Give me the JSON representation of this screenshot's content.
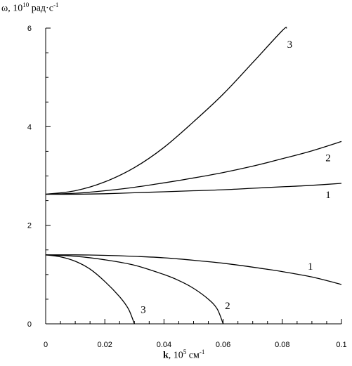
{
  "chart_data": {
    "type": "line",
    "ylabel": {
      "symbol": "ω,",
      "base": "10",
      "exp": "10",
      "unit": "рад·с",
      "unit_exp": "-1"
    },
    "xlabel": {
      "symbol": "k",
      "sep": ",",
      "base": "10",
      "exp": "5",
      "unit": "см",
      "unit_exp": "-1"
    },
    "xlim": [
      0,
      0.1
    ],
    "ylim": [
      0,
      6
    ],
    "x_ticks": [
      0,
      0.02,
      0.04,
      0.06,
      0.08,
      0.1
    ],
    "x_tick_labels": [
      "0",
      "0.02",
      "0.04",
      "0.06",
      "0.08",
      "0.1"
    ],
    "y_ticks": [
      0,
      2,
      4,
      6
    ],
    "y_tick_labels": [
      "0",
      "2",
      "4",
      "6"
    ],
    "grid": false,
    "series": [
      {
        "name": "1",
        "branch": "upper",
        "x": [
          0,
          0.01,
          0.02,
          0.03,
          0.04,
          0.05,
          0.06,
          0.07,
          0.08,
          0.09,
          0.1
        ],
        "y": [
          2.63,
          2.63,
          2.64,
          2.66,
          2.68,
          2.7,
          2.72,
          2.75,
          2.78,
          2.81,
          2.85
        ]
      },
      {
        "name": "2",
        "branch": "upper",
        "x": [
          0,
          0.01,
          0.02,
          0.03,
          0.04,
          0.05,
          0.06,
          0.07,
          0.08,
          0.09,
          0.1
        ],
        "y": [
          2.63,
          2.65,
          2.7,
          2.77,
          2.86,
          2.96,
          3.07,
          3.2,
          3.35,
          3.51,
          3.7
        ]
      },
      {
        "name": "3",
        "branch": "upper",
        "x": [
          0,
          0.01,
          0.02,
          0.03,
          0.04,
          0.05,
          0.06,
          0.07,
          0.08,
          0.0815
        ],
        "y": [
          2.63,
          2.7,
          2.88,
          3.17,
          3.58,
          4.1,
          4.66,
          5.3,
          5.95,
          6.0
        ]
      },
      {
        "name": "1",
        "branch": "lower",
        "x": [
          0,
          0.01,
          0.02,
          0.03,
          0.04,
          0.05,
          0.06,
          0.07,
          0.08,
          0.09,
          0.1
        ],
        "y": [
          1.4,
          1.4,
          1.39,
          1.37,
          1.34,
          1.29,
          1.23,
          1.15,
          1.06,
          0.95,
          0.8
        ]
      },
      {
        "name": "2",
        "branch": "lower",
        "x": [
          0,
          0.01,
          0.02,
          0.03,
          0.04,
          0.045,
          0.05,
          0.055,
          0.058,
          0.06
        ],
        "y": [
          1.4,
          1.37,
          1.3,
          1.19,
          1.0,
          0.88,
          0.72,
          0.5,
          0.3,
          0.0
        ]
      },
      {
        "name": "3",
        "branch": "lower",
        "x": [
          0,
          0.005,
          0.01,
          0.015,
          0.02,
          0.025,
          0.028,
          0.03
        ],
        "y": [
          1.4,
          1.36,
          1.27,
          1.11,
          0.86,
          0.55,
          0.3,
          0.0
        ]
      }
    ],
    "curve_labels": [
      {
        "text": "3",
        "x": 0.0825,
        "y": 5.6
      },
      {
        "text": "2",
        "x": 0.0955,
        "y": 3.3
      },
      {
        "text": "1",
        "x": 0.0955,
        "y": 2.55
      },
      {
        "text": "1",
        "x": 0.0895,
        "y": 1.1
      },
      {
        "text": "2",
        "x": 0.0615,
        "y": 0.3
      },
      {
        "text": "3",
        "x": 0.033,
        "y": 0.22
      }
    ]
  }
}
